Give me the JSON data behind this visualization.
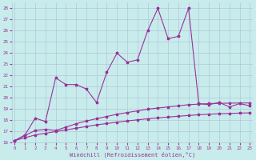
{
  "xlabel": "Windchill (Refroidissement éolien,°C)",
  "bg_color": "#c8ecec",
  "grid_color": "#b0c8d8",
  "line_color": "#993399",
  "x_ticks": [
    0,
    1,
    2,
    3,
    4,
    5,
    6,
    7,
    8,
    9,
    10,
    11,
    12,
    13,
    14,
    15,
    16,
    17,
    18,
    19,
    20,
    21,
    22,
    23
  ],
  "ylim": [
    16,
    28.5
  ],
  "xlim": [
    -0.3,
    23.3
  ],
  "y_ticks": [
    16,
    17,
    18,
    19,
    20,
    21,
    22,
    23,
    24,
    25,
    26,
    27,
    28
  ],
  "series1_y": [
    16.2,
    16.7,
    18.2,
    17.9,
    21.8,
    21.2,
    21.2,
    20.8,
    19.6,
    22.3,
    24.0,
    23.2,
    23.4,
    26.0,
    28.0,
    25.3,
    25.5,
    28.0,
    19.5,
    19.4,
    19.6,
    19.2,
    19.5,
    19.3
  ],
  "series2_y": [
    16.2,
    16.65,
    17.1,
    17.2,
    17.1,
    17.4,
    17.7,
    17.95,
    18.15,
    18.35,
    18.55,
    18.7,
    18.85,
    19.0,
    19.1,
    19.2,
    19.3,
    19.4,
    19.45,
    19.5,
    19.52,
    19.54,
    19.55,
    19.56
  ],
  "series3_y": [
    16.2,
    16.45,
    16.7,
    16.85,
    17.0,
    17.15,
    17.3,
    17.45,
    17.6,
    17.72,
    17.84,
    17.95,
    18.05,
    18.14,
    18.22,
    18.3,
    18.37,
    18.44,
    18.5,
    18.55,
    18.59,
    18.62,
    18.65,
    18.67
  ]
}
